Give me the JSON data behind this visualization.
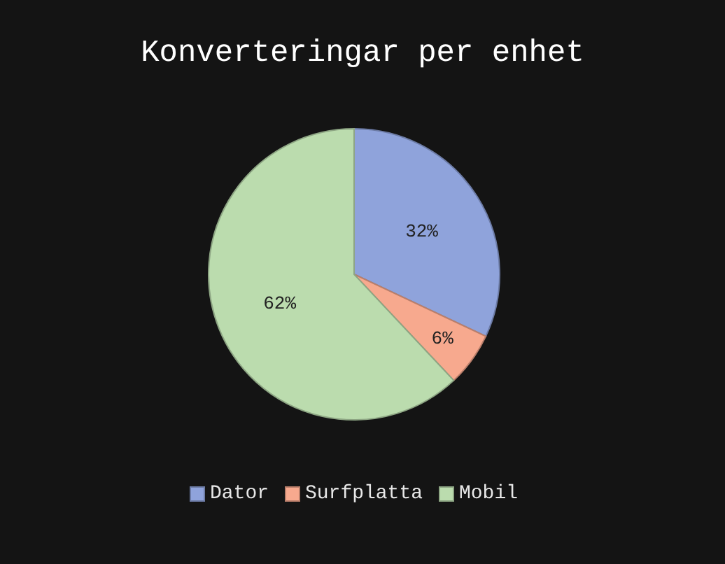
{
  "chart_data": {
    "type": "pie",
    "title": "Konverteringar per enhet",
    "categories": [
      "Dator",
      "Surfplatta",
      "Mobil"
    ],
    "values": [
      32,
      6,
      62
    ],
    "value_labels": [
      "32%",
      "6%",
      "62%"
    ],
    "colors": [
      "#8fa3db",
      "#f7a98e",
      "#bbdcae"
    ],
    "legend": "bottom"
  }
}
